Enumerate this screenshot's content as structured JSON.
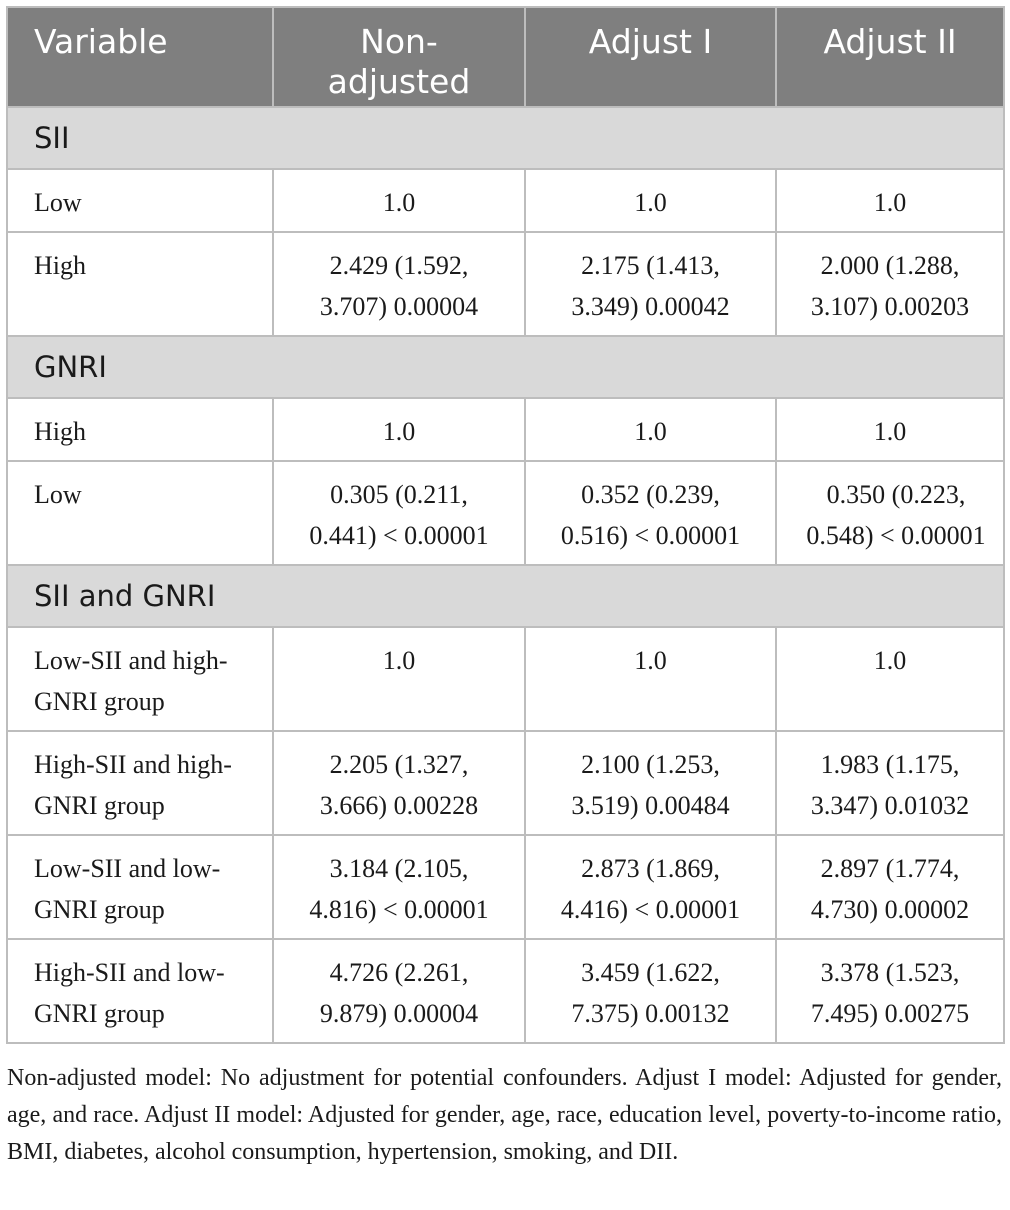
{
  "header": {
    "variable": "Variable",
    "non_adjusted": "Non-adjusted",
    "adjust_1": "Adjust I",
    "adjust_2": "Adjust II"
  },
  "sections": [
    {
      "title": "SII",
      "rows": [
        {
          "variable": "Low",
          "non_adjusted": "1.0",
          "adjust_1": "1.0",
          "adjust_2": "1.0"
        },
        {
          "variable": "High",
          "non_adjusted": "2.429 (1.592, 3.707) 0.00004",
          "adjust_1": "2.175 (1.413, 3.349) 0.00042",
          "adjust_2": "2.000 (1.288, 3.107) 0.00203"
        }
      ]
    },
    {
      "title": "GNRI",
      "rows": [
        {
          "variable": "High",
          "non_adjusted": "1.0",
          "adjust_1": "1.0",
          "adjust_2": "1.0"
        },
        {
          "variable": "Low",
          "non_adjusted": "0.305 (0.211, 0.441) < 0.00001",
          "adjust_1": "0.352 (0.239, 0.516) < 0.00001",
          "adjust_2": "0.350 (0.223, 0.548) < 0.00001"
        }
      ]
    },
    {
      "title": "SII and GNRI",
      "rows": [
        {
          "variable": "Low-SII and high-GNRI group",
          "non_adjusted": "1.0",
          "adjust_1": "1.0",
          "adjust_2": "1.0"
        },
        {
          "variable": "High-SII and high-GNRI group",
          "non_adjusted": "2.205 (1.327, 3.666) 0.00228",
          "adjust_1": "2.100 (1.253, 3.519) 0.00484",
          "adjust_2": "1.983 (1.175, 3.347) 0.01032"
        },
        {
          "variable": "Low-SII and low-GNRI group",
          "non_adjusted": "3.184 (2.105, 4.816) < 0.00001",
          "adjust_1": "2.873 (1.869, 4.416) < 0.00001",
          "adjust_2": "2.897 (1.774, 4.730) 0.00002"
        },
        {
          "variable": "High-SII and low-GNRI group",
          "non_adjusted": "4.726 (2.261, 9.879) 0.00004",
          "adjust_1": "3.459 (1.622, 7.375) 0.00132",
          "adjust_2": "3.378 (1.523, 7.495) 0.00275"
        }
      ]
    }
  ],
  "footnote": "Non-adjusted model: No adjustment for potential confounders. Adjust I model: Adjusted for gender, age, and race. Adjust II model: Adjusted for gender, age, race, education level, poverty-to-income ratio, BMI, diabetes, alcohol consumption, hypertension, smoking, and DII."
}
